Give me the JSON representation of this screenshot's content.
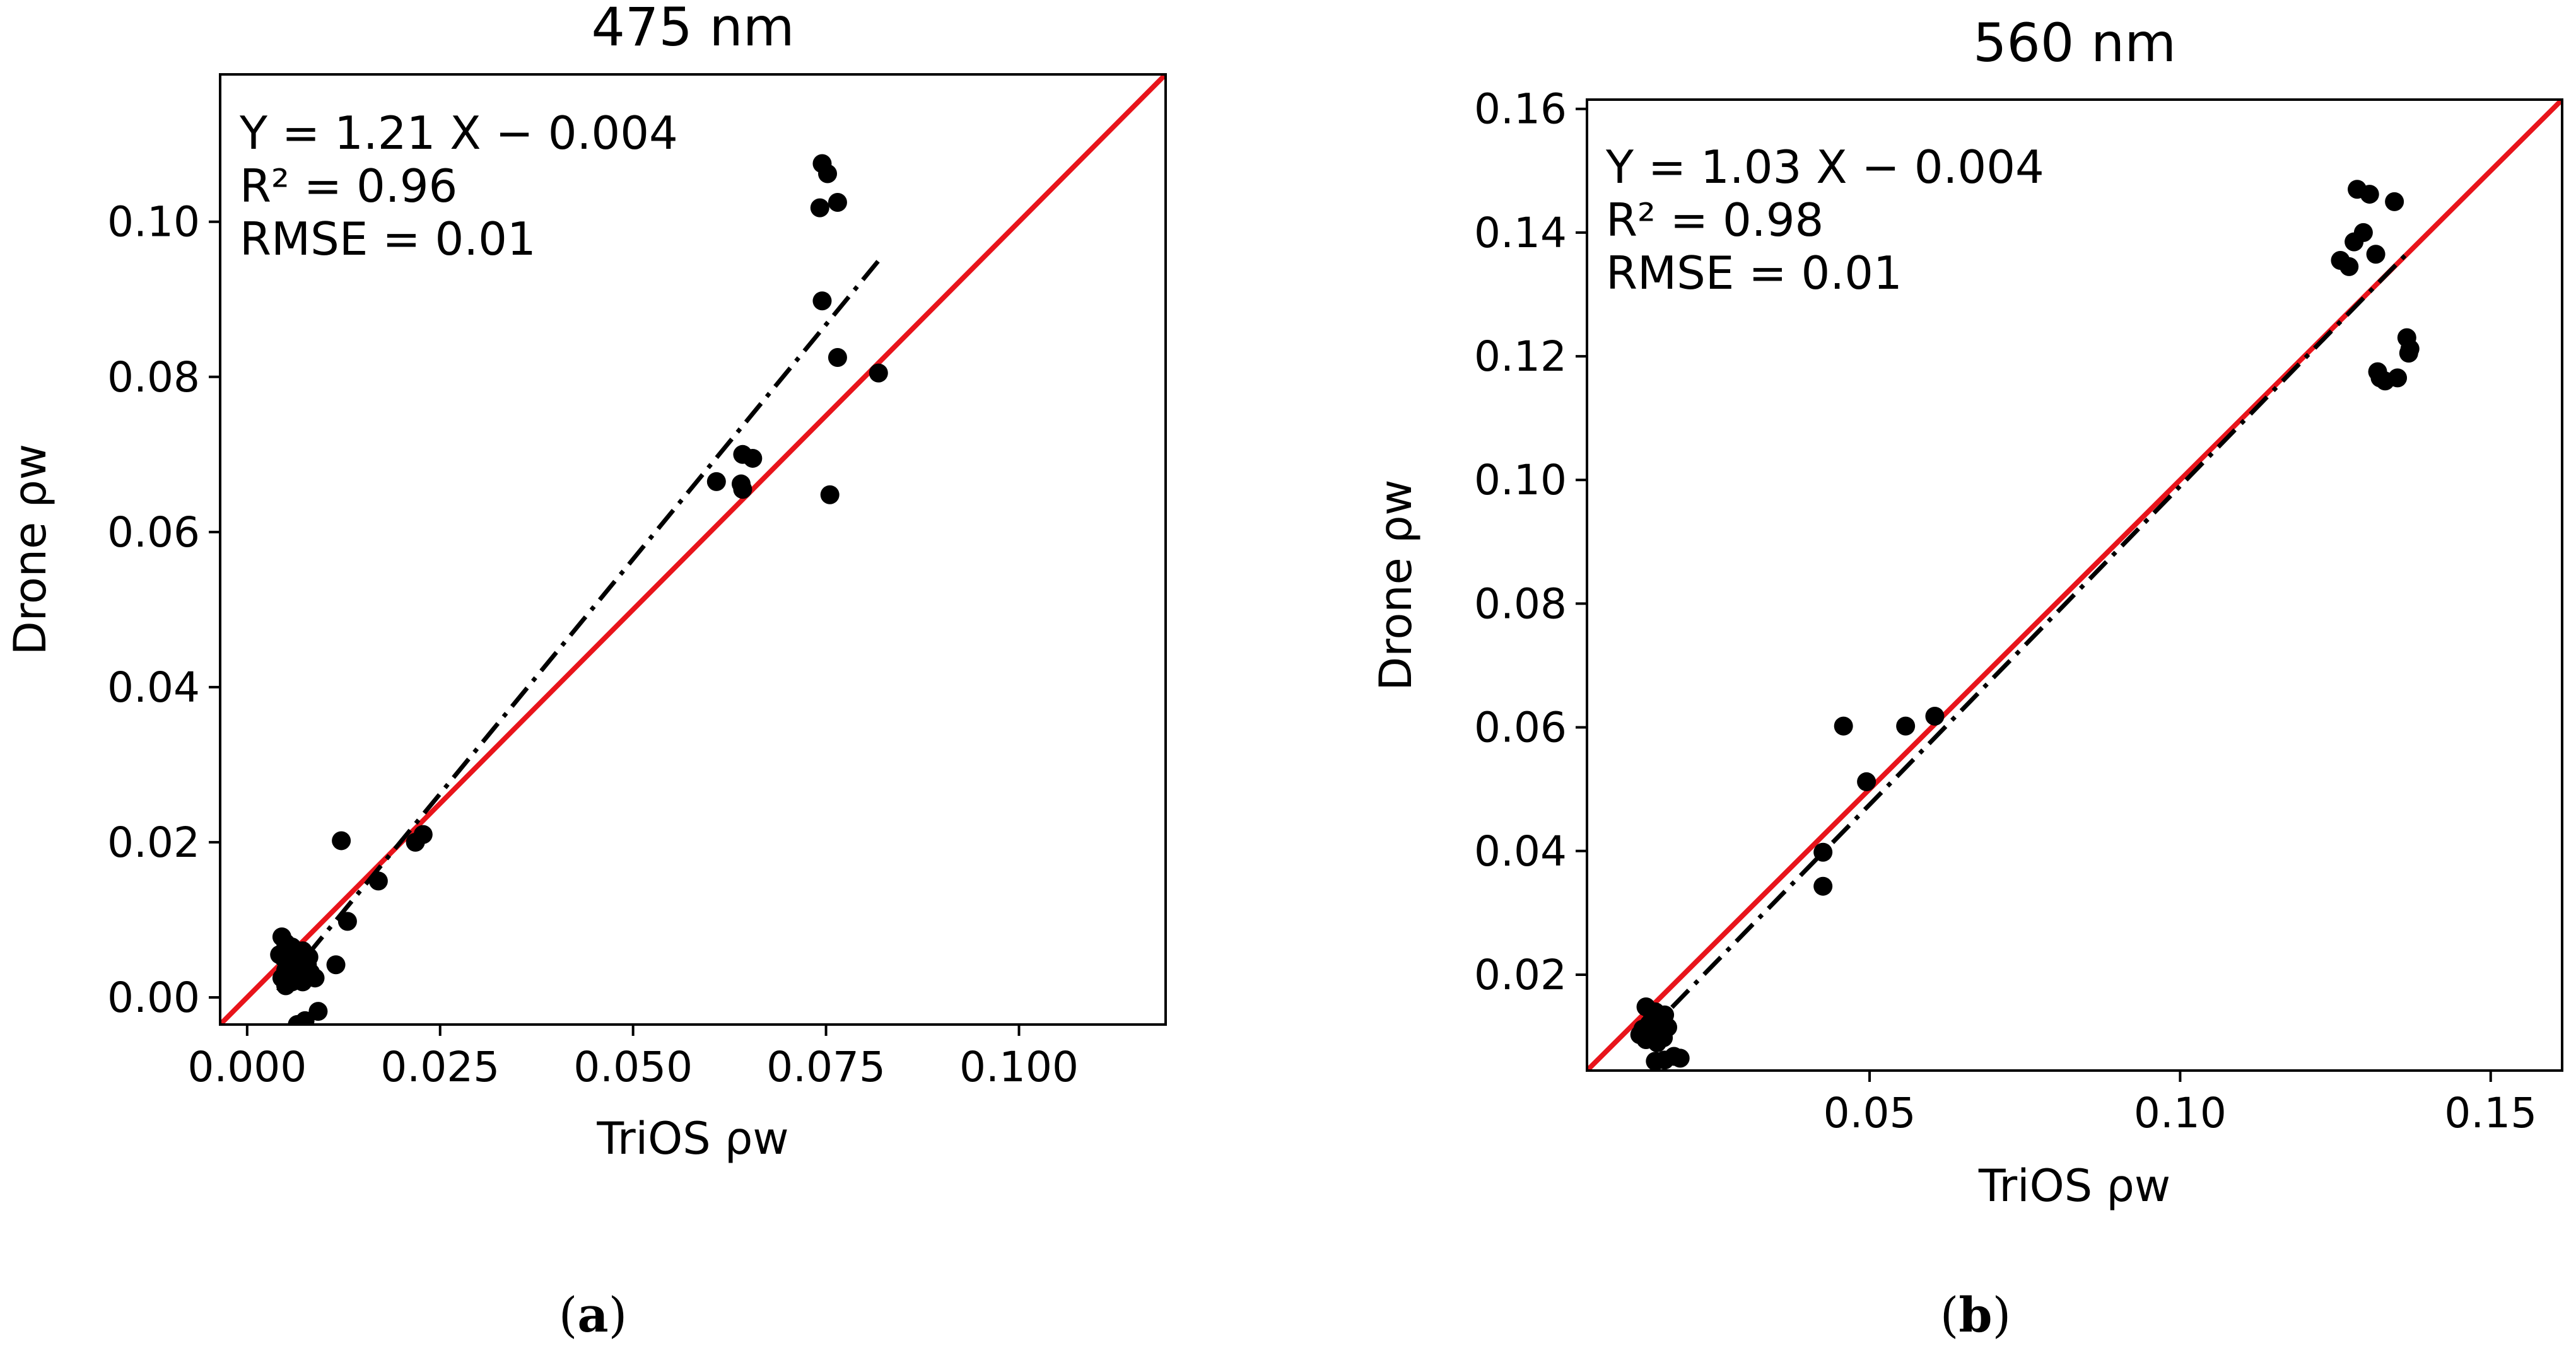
{
  "colors": {
    "identity_line": "#e8141b",
    "points": "#000000",
    "fit_line": "#000000",
    "axes": "#000000"
  },
  "chart_data": [
    {
      "id": "a",
      "type": "scatter",
      "title": "475 nm",
      "xlabel": "TriOS ρw",
      "ylabel": "Drone ρw",
      "caption": "(a)",
      "caption_letter": "a",
      "xlim": [
        -0.0035,
        0.119
      ],
      "ylim": [
        -0.0035,
        0.119
      ],
      "xticks": [
        0.0,
        0.025,
        0.05,
        0.075,
        0.1
      ],
      "xtick_labels": [
        "0.000",
        "0.025",
        "0.050",
        "0.075",
        "0.100"
      ],
      "yticks": [
        0.0,
        0.02,
        0.04,
        0.06,
        0.08,
        0.1
      ],
      "ytick_labels": [
        "0.00",
        "0.02",
        "0.04",
        "0.06",
        "0.08",
        "0.10"
      ],
      "annotations": [
        "Y = 1.21 X − 0.004",
        "R² = 0.96",
        "RMSE = 0.01"
      ],
      "fit": {
        "slope": 1.21,
        "intercept": -0.004,
        "x_range": [
          0.004,
          0.082
        ],
        "style": "dash-dot"
      },
      "identity_line": true,
      "points": [
        [
          0.0745,
          0.1075
        ],
        [
          0.0752,
          0.1062
        ],
        [
          0.0765,
          0.1025
        ],
        [
          0.0742,
          0.1018
        ],
        [
          0.0745,
          0.0898
        ],
        [
          0.0765,
          0.0825
        ],
        [
          0.0818,
          0.0805
        ],
        [
          0.0642,
          0.07
        ],
        [
          0.0655,
          0.0695
        ],
        [
          0.0608,
          0.0665
        ],
        [
          0.064,
          0.0662
        ],
        [
          0.0642,
          0.0655
        ],
        [
          0.0755,
          0.0648
        ],
        [
          0.0228,
          0.021
        ],
        [
          0.0218,
          0.02
        ],
        [
          0.0122,
          0.0202
        ],
        [
          0.017,
          0.015
        ],
        [
          0.013,
          0.0098
        ],
        [
          0.0115,
          0.0042
        ],
        [
          0.0045,
          0.0078
        ],
        [
          0.005,
          0.007
        ],
        [
          0.0058,
          0.0065
        ],
        [
          0.0072,
          0.006
        ],
        [
          0.0062,
          0.0058
        ],
        [
          0.0042,
          0.0055
        ],
        [
          0.008,
          0.0052
        ],
        [
          0.0048,
          0.005
        ],
        [
          0.0068,
          0.0048
        ],
        [
          0.0055,
          0.0045
        ],
        [
          0.0078,
          0.0042
        ],
        [
          0.006,
          0.004
        ],
        [
          0.005,
          0.0035
        ],
        [
          0.0082,
          0.0032
        ],
        [
          0.0065,
          0.0028
        ],
        [
          0.0045,
          0.0025
        ],
        [
          0.0058,
          0.002
        ],
        [
          0.0072,
          0.002
        ],
        [
          0.0088,
          0.0025
        ],
        [
          0.005,
          0.0015
        ],
        [
          0.0092,
          -0.0018
        ],
        [
          0.0075,
          -0.003
        ],
        [
          0.0065,
          -0.0035
        ]
      ]
    },
    {
      "id": "b",
      "type": "scatter",
      "title": "560 nm",
      "xlabel": "TriOS ρw",
      "ylabel": "Drone ρw",
      "caption": "(b)",
      "caption_letter": "b",
      "xlim": [
        0.0045,
        0.1615
      ],
      "ylim": [
        0.0045,
        0.1615
      ],
      "xticks": [
        0.05,
        0.1,
        0.15
      ],
      "xtick_labels": [
        "0.05",
        "0.10",
        "0.15"
      ],
      "yticks": [
        0.02,
        0.04,
        0.06,
        0.08,
        0.1,
        0.12,
        0.14,
        0.16
      ],
      "ytick_labels": [
        "0.02",
        "0.04",
        "0.06",
        "0.08",
        "0.10",
        "0.12",
        "0.14",
        "0.16"
      ],
      "annotations": [
        "Y = 1.03 X − 0.004",
        "R² = 0.98",
        "RMSE = 0.01"
      ],
      "fit": {
        "slope": 1.03,
        "intercept": -0.004,
        "x_range": [
          0.013,
          0.137
        ],
        "style": "dash-dot"
      },
      "identity_line": true,
      "points": [
        [
          0.1285,
          0.147
        ],
        [
          0.1305,
          0.1462
        ],
        [
          0.1345,
          0.145
        ],
        [
          0.1295,
          0.14
        ],
        [
          0.128,
          0.1385
        ],
        [
          0.1315,
          0.1365
        ],
        [
          0.1258,
          0.1355
        ],
        [
          0.1272,
          0.1345
        ],
        [
          0.1365,
          0.123
        ],
        [
          0.137,
          0.1212
        ],
        [
          0.1368,
          0.1205
        ],
        [
          0.1318,
          0.1175
        ],
        [
          0.1322,
          0.1165
        ],
        [
          0.135,
          0.1165
        ],
        [
          0.133,
          0.116
        ],
        [
          0.0458,
          0.0602
        ],
        [
          0.0558,
          0.0602
        ],
        [
          0.0605,
          0.0618
        ],
        [
          0.0495,
          0.0512
        ],
        [
          0.0425,
          0.0398
        ],
        [
          0.0425,
          0.0343
        ],
        [
          0.014,
          0.0148
        ],
        [
          0.0155,
          0.014
        ],
        [
          0.017,
          0.0135
        ],
        [
          0.015,
          0.0128
        ],
        [
          0.0165,
          0.0122
        ],
        [
          0.0145,
          0.012
        ],
        [
          0.0175,
          0.0115
        ],
        [
          0.0135,
          0.0112
        ],
        [
          0.016,
          0.0108
        ],
        [
          0.013,
          0.0103
        ],
        [
          0.015,
          0.01
        ],
        [
          0.0168,
          0.0098
        ],
        [
          0.014,
          0.0095
        ],
        [
          0.0158,
          0.009
        ],
        [
          0.0185,
          0.0068
        ],
        [
          0.017,
          0.0062
        ],
        [
          0.0155,
          0.006
        ],
        [
          0.0195,
          0.0065
        ]
      ]
    }
  ]
}
